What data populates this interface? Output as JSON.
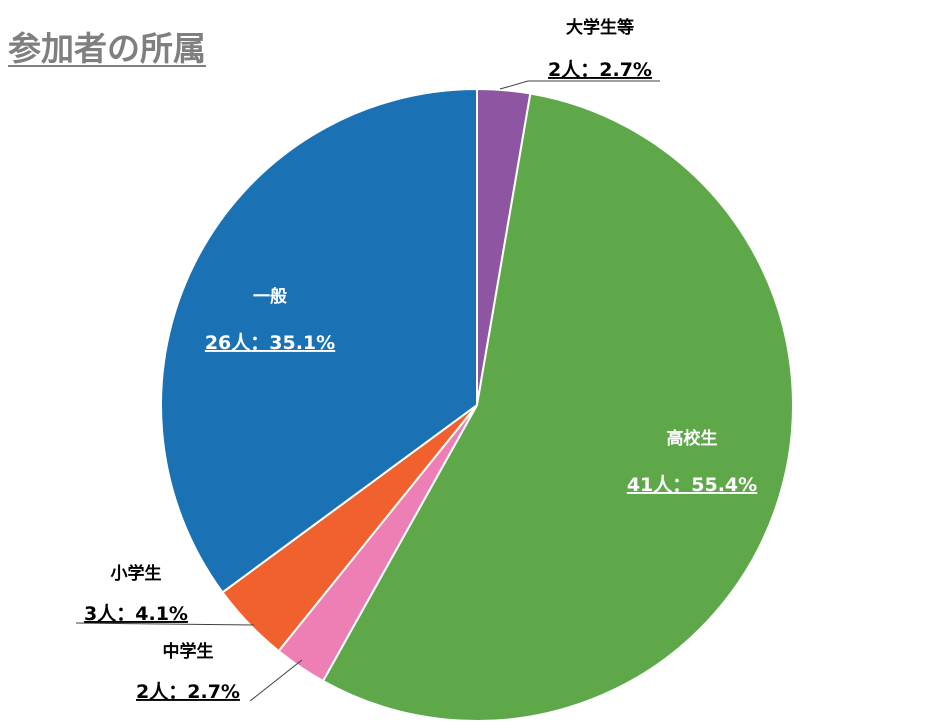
{
  "title": "参加者の所属",
  "chart_data": {
    "type": "pie",
    "title": "参加者の所属",
    "slices": [
      {
        "name": "大学生等",
        "count_label": "2人：2.7%",
        "value": 2.7,
        "color": "#8e56a2"
      },
      {
        "name": "高校生",
        "count_label": "41人：55.4%",
        "value": 55.4,
        "color": "#5ea84a"
      },
      {
        "name": "中学生",
        "count_label": "2人：2.7%",
        "value": 2.7,
        "color": "#ee7fb4"
      },
      {
        "name": "小学生",
        "count_label": "3人：4.1%",
        "value": 4.1,
        "color": "#f0612d"
      },
      {
        "name": "一般",
        "count_label": "26人：35.1%",
        "value": 35.1,
        "color": "#1a72b5"
      }
    ]
  }
}
